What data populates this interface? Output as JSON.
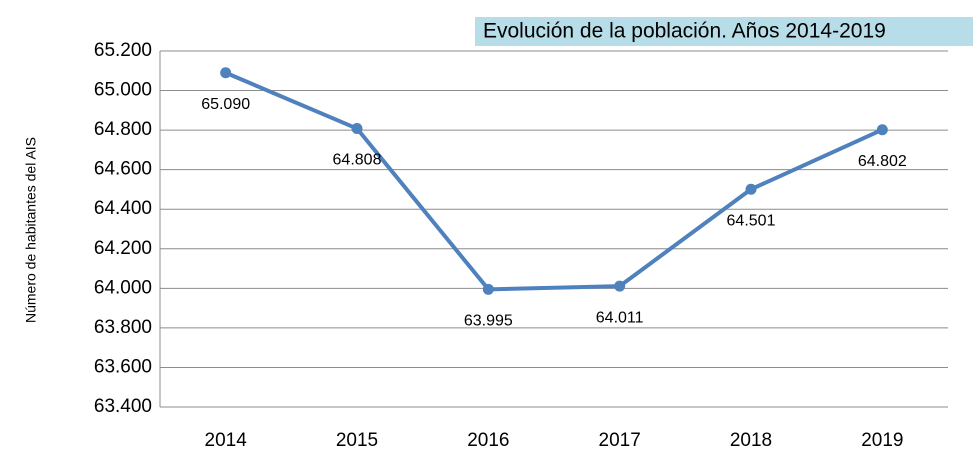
{
  "chart_data": {
    "type": "line",
    "title": "Evolución de la población. Años 2014-2019",
    "y_label": "Número de habitantes del AIS",
    "categories": [
      "2014",
      "2015",
      "2016",
      "2017",
      "2018",
      "2019"
    ],
    "series": [
      {
        "color": "#4f81bd",
        "values": [
          65090,
          64808,
          63995,
          64011,
          64501,
          64802
        ],
        "value_labels": [
          "65.090",
          "64.808",
          "63.995",
          "64.011",
          "64.501",
          "64.802"
        ]
      }
    ],
    "ylim": [
      63400,
      65200
    ],
    "yticks": [
      {
        "value": 63400,
        "label": "63.400"
      },
      {
        "value": 63600,
        "label": "63.600"
      },
      {
        "value": 63800,
        "label": "63.800"
      },
      {
        "value": 64000,
        "label": "64.000"
      },
      {
        "value": 64200,
        "label": "64.200"
      },
      {
        "value": 64400,
        "label": "64.400"
      },
      {
        "value": 64600,
        "label": "64.600"
      },
      {
        "value": 64800,
        "label": "64.800"
      },
      {
        "value": 65000,
        "label": "65.000"
      },
      {
        "value": 65200,
        "label": "65.200"
      }
    ],
    "grid": true
  }
}
